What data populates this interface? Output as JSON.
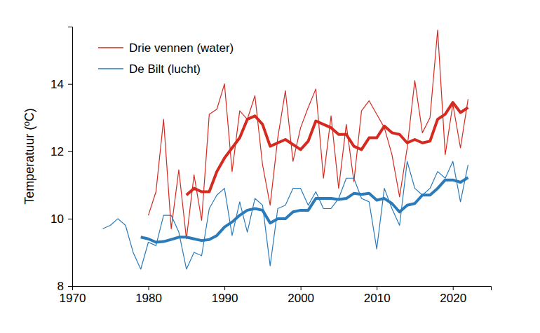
{
  "chart_data": {
    "type": "line",
    "y_label": "Temperatuur (ºC)",
    "x": [
      1974,
      1975,
      1976,
      1977,
      1978,
      1979,
      1980,
      1981,
      1982,
      1983,
      1984,
      1985,
      1986,
      1987,
      1988,
      1989,
      1990,
      1991,
      1992,
      1993,
      1994,
      1995,
      1996,
      1997,
      1998,
      1999,
      2000,
      2001,
      2002,
      2003,
      2004,
      2005,
      2006,
      2007,
      2008,
      2009,
      2010,
      2011,
      2012,
      2013,
      2014,
      2015,
      2016,
      2017,
      2018,
      2019,
      2020,
      2021,
      2022
    ],
    "series": [
      {
        "name": "Drie vennen (water)",
        "color": "#d42a20",
        "line_style": "thin",
        "values": [
          null,
          null,
          null,
          null,
          null,
          null,
          10.1,
          10.8,
          12.95,
          9.7,
          11.45,
          9.4,
          11.3,
          9.95,
          13.1,
          13.25,
          14.0,
          11.4,
          13.2,
          12.95,
          13.65,
          11.6,
          10.4,
          12.4,
          13.8,
          11.7,
          12.7,
          13.3,
          13.85,
          11.2,
          13.05,
          10.9,
          12.8,
          11.1,
          13.2,
          13.5,
          13.1,
          12.7,
          11.9,
          10.65,
          12.1,
          14.1,
          12.55,
          13.0,
          15.6,
          11.9,
          13.4,
          12.1,
          13.55
        ]
      },
      {
        "color": "#d42a20",
        "line_style": "thick",
        "values": [
          null,
          null,
          null,
          null,
          null,
          null,
          null,
          null,
          null,
          null,
          null,
          10.7,
          10.9,
          10.8,
          10.8,
          11.4,
          11.8,
          12.1,
          12.4,
          12.95,
          13.05,
          12.8,
          12.15,
          12.25,
          12.35,
          12.2,
          12.05,
          12.3,
          12.9,
          12.8,
          12.7,
          12.5,
          12.5,
          12.15,
          12.05,
          12.4,
          12.4,
          12.75,
          12.55,
          12.5,
          12.25,
          12.35,
          12.25,
          12.3,
          12.95,
          13.1,
          13.45,
          13.15,
          13.3
        ]
      },
      {
        "name": "De Bilt (lucht)",
        "color": "#2b7bba",
        "line_style": "thin",
        "values": [
          9.7,
          9.8,
          10.0,
          9.8,
          9.0,
          8.5,
          9.3,
          9.2,
          10.1,
          10.1,
          9.6,
          8.5,
          9.0,
          8.9,
          10.3,
          10.7,
          10.9,
          9.5,
          10.5,
          9.6,
          10.6,
          10.4,
          8.6,
          10.3,
          10.4,
          10.9,
          10.9,
          10.4,
          10.8,
          10.3,
          10.3,
          10.6,
          11.2,
          11.2,
          10.6,
          10.5,
          9.1,
          10.9,
          10.3,
          9.8,
          11.7,
          10.9,
          10.7,
          10.9,
          11.4,
          11.2,
          11.7,
          10.5,
          11.6
        ]
      },
      {
        "color": "#2b7bba",
        "line_style": "thick",
        "values": [
          null,
          null,
          null,
          null,
          null,
          9.45,
          9.4,
          9.3,
          9.32,
          9.38,
          9.45,
          9.45,
          9.4,
          9.35,
          9.38,
          9.5,
          9.75,
          9.9,
          10.1,
          10.25,
          10.3,
          10.25,
          9.87,
          10.0,
          10.0,
          10.2,
          10.25,
          10.25,
          10.6,
          10.6,
          10.6,
          10.57,
          10.6,
          10.75,
          10.72,
          10.75,
          10.55,
          10.6,
          10.45,
          10.2,
          10.4,
          10.45,
          10.7,
          10.7,
          10.9,
          11.15,
          11.15,
          11.08,
          11.22
        ]
      }
    ],
    "xlim": [
      1970,
      2025
    ],
    "xticks": [
      1970,
      1980,
      1990,
      2000,
      2010,
      2020
    ],
    "ylim": [
      8,
      15.7
    ],
    "yticks": [
      8,
      10,
      12,
      14
    ],
    "legend": "upper left",
    "grid": false
  }
}
